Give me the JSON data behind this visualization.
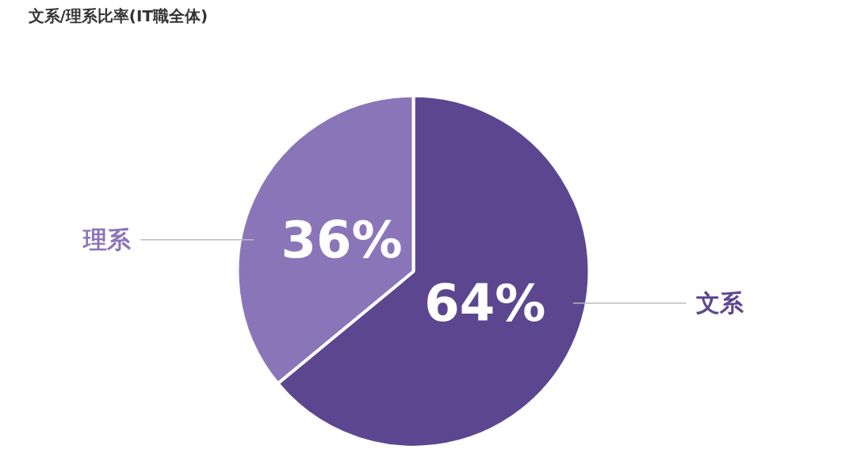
{
  "chart_data": {
    "type": "pie",
    "title": "文系/理系比率(IT職全体)",
    "categories": [
      "文系",
      "理系"
    ],
    "values": [
      64,
      36
    ],
    "colors": [
      "#5c4690",
      "#8a75b9"
    ],
    "value_labels": [
      "64%",
      "36%"
    ]
  }
}
